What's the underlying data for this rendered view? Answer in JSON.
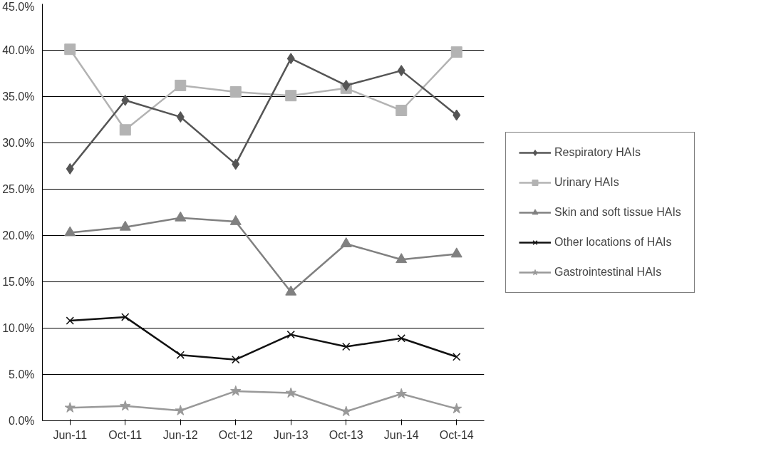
{
  "chart_data": {
    "type": "line",
    "categories": [
      "Jun-11",
      "Oct-11",
      "Jun-12",
      "Oct-12",
      "Jun-13",
      "Oct-13",
      "Jun-14",
      "Oct-14"
    ],
    "series": [
      {
        "name": "Respiratory HAIs",
        "color": "#555555",
        "marker": "diamond",
        "values": [
          27.2,
          34.6,
          32.8,
          27.7,
          39.1,
          36.2,
          37.8,
          33.0
        ]
      },
      {
        "name": "Urinary HAIs",
        "color": "#b3b3b3",
        "marker": "square",
        "values": [
          40.1,
          31.4,
          36.2,
          35.5,
          35.1,
          35.9,
          33.5,
          39.8
        ]
      },
      {
        "name": "Skin and soft tissue HAIs",
        "color": "#808080",
        "marker": "triangle",
        "values": [
          20.3,
          20.9,
          21.9,
          21.5,
          13.9,
          19.1,
          17.4,
          18.0
        ]
      },
      {
        "name": "Other locations of HAIs",
        "color": "#111111",
        "marker": "cross",
        "values": [
          10.8,
          11.2,
          7.1,
          6.6,
          9.3,
          8.0,
          8.9,
          6.9
        ]
      },
      {
        "name": "Gastrointestinal HAIs",
        "color": "#999999",
        "marker": "star",
        "values": [
          1.4,
          1.6,
          1.1,
          3.2,
          3.0,
          1.0,
          2.9,
          1.3
        ]
      }
    ],
    "ylim": [
      0,
      45
    ],
    "yticks": [
      {
        "value": 0,
        "label": "0.0%"
      },
      {
        "value": 5,
        "label": "5.0%"
      },
      {
        "value": 10,
        "label": "10.0%"
      },
      {
        "value": 15,
        "label": "15.0%"
      },
      {
        "value": 20,
        "label": "20.0%"
      },
      {
        "value": 25,
        "label": "25.0%"
      },
      {
        "value": 30,
        "label": "30.0%"
      },
      {
        "value": 35,
        "label": "35.0%"
      },
      {
        "value": 40,
        "label": "40.0%"
      },
      {
        "value": 45,
        "label": "45.0%"
      }
    ],
    "grid": "y",
    "legend": "right",
    "line_style": "solid"
  }
}
